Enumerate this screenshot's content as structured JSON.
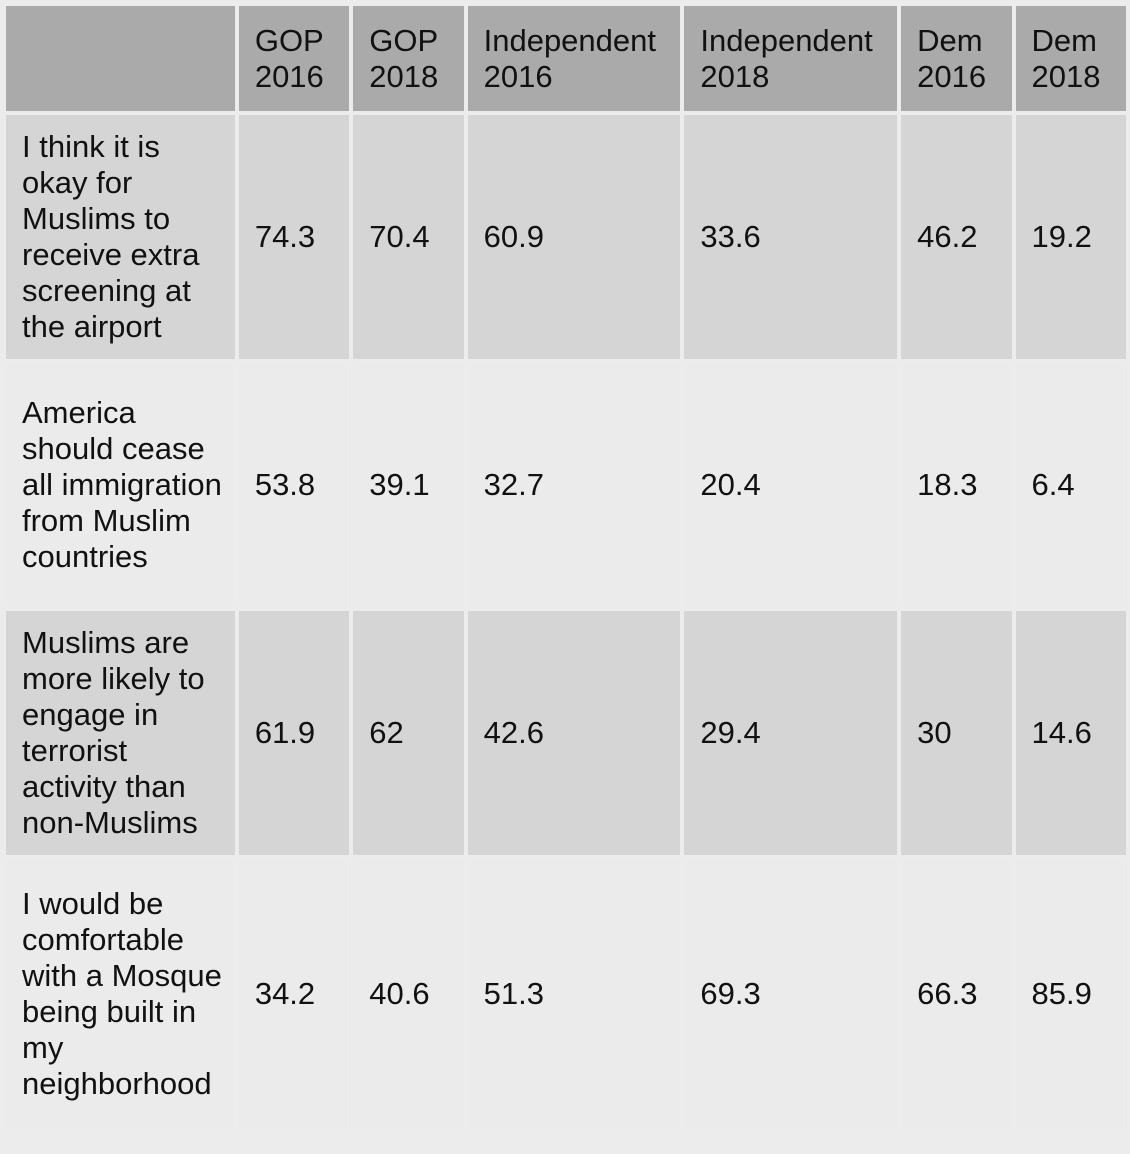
{
  "table": {
    "headers": [
      "",
      "GOP 2016",
      "GOP 2018",
      "Independent 2016",
      "Independent 2018",
      "Dem 2016",
      "Dem 2018"
    ],
    "rows": [
      {
        "statement": "I think it is okay for Muslims to receive extra screening at the airport",
        "values": [
          "74.3",
          "70.4",
          "60.9",
          "33.6",
          "46.2",
          "19.2"
        ]
      },
      {
        "statement": "America should cease all immigration from Muslim countries",
        "values": [
          "53.8",
          "39.1",
          "32.7",
          "20.4",
          "18.3",
          "6.4"
        ]
      },
      {
        "statement": "Muslims are more likely to engage in terrorist activity than non-Muslims",
        "values": [
          "61.9",
          "62",
          "42.6",
          "29.4",
          "30",
          "14.6"
        ]
      },
      {
        "statement": "I would be comfortable with a Mosque being built in my neighborhood",
        "values": [
          "34.2",
          "40.6",
          "51.3",
          "69.3",
          "66.3",
          "85.9"
        ]
      }
    ]
  }
}
